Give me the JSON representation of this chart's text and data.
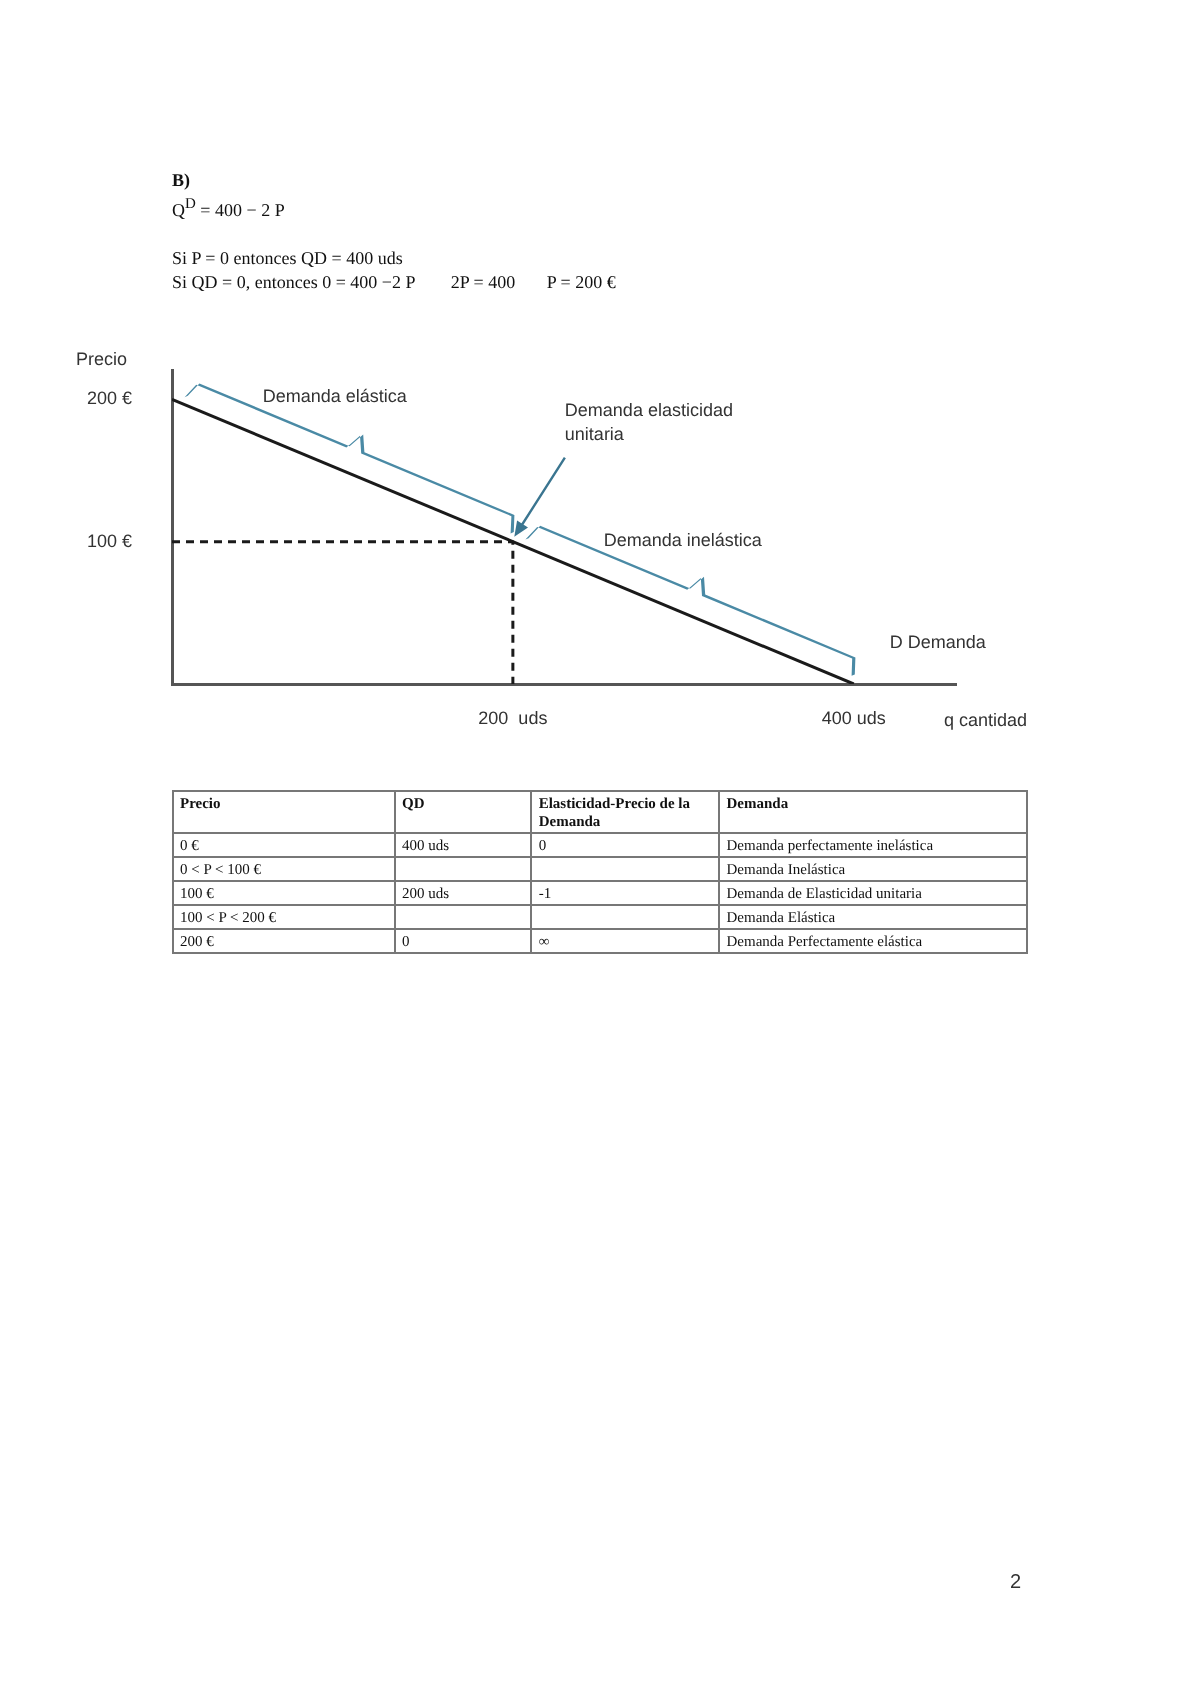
{
  "chart_data": [
    {
      "type": "line",
      "title": "B)",
      "subtitle": "Q$^{D}$ = 400 − 2 P\n\nSi P = 0 entonces QD = 400 uds\nSi QD = 0, entonces 0 = 400 −2 P        2P = 400       P = 200 €",
      "annotations": [
        "Demanda elástica",
        {
          "text": "Demanda elasticidad unitaria",
          "x": 200,
          "y": 100
        },
        "Demanda inelástica"
      ],
      "xlabel": "q cantidad",
      "ylabel": "Precio",
      "xlim": [
        0,
        460
      ],
      "ylim": [
        0,
        220
      ],
      "xticks": [
        {
          "value": 200,
          "label": "200  uds"
        },
        {
          "value": 400,
          "label": "400 uds"
        }
      ],
      "yticks": [
        {
          "value": 100,
          "label": "100 €"
        },
        {
          "value": 200,
          "label": "200 €"
        }
      ],
      "grid": false,
      "legend": false,
      "marker": "none",
      "series": [
        {
          "name": "D Demanda",
          "color": "#1a1a1a",
          "x": [
            0,
            400
          ],
          "values": [
            200,
            0
          ],
          "line_style": "solid"
        },
        {
          "color": "#1a1a1a",
          "x": [
            0,
            200,
            200
          ],
          "values": [
            100,
            100,
            0
          ],
          "line_style": "dashed"
        }
      ]
    },
    {
      "type": "other",
      "categories": [
        "Precio",
        "QD",
        "Elasticidad-Precio de la Demanda",
        "Demanda"
      ],
      "cell_labels": [
        [
          "0 €",
          "400 uds",
          "0",
          "Demanda perfectamente inelástica"
        ],
        [
          "0 <  P < 100  €",
          null,
          null,
          "Demanda Inelástica"
        ],
        [
          "100 €",
          "200 uds",
          "-1",
          "Demanda de Elasticidad unitaria"
        ],
        [
          "100 <  P < 200  €",
          null,
          null,
          "Demanda Elástica"
        ],
        [
          "200 €",
          "0",
          "∞",
          "Demanda Perfectamente elástica"
        ]
      ],
      "annotations": [
        "2"
      ]
    }
  ]
}
